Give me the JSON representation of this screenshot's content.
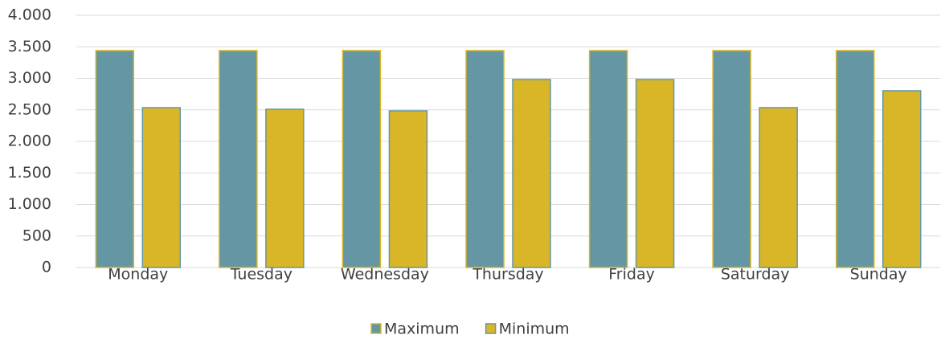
{
  "chart_data": {
    "type": "bar",
    "categories": [
      "Monday",
      "Tuesday",
      "Wednesday",
      "Thursday",
      "Friday",
      "Saturday",
      "Sunday"
    ],
    "series": [
      {
        "name": "Maximum",
        "color": "#6497a3",
        "values": [
          3440,
          3440,
          3440,
          3440,
          3440,
          3440,
          3440
        ]
      },
      {
        "name": "Minimum",
        "color": "#d9b528",
        "values": [
          2535,
          2510,
          2484,
          2981,
          2981,
          2535,
          2803
        ]
      }
    ],
    "ylim": [
      0,
      4000
    ],
    "yticks": [
      0,
      500,
      {
        "value": 1000,
        "label": "1.000"
      },
      {
        "value": 1500,
        "label": "1.500"
      },
      {
        "value": 2000,
        "label": "2.000"
      },
      {
        "value": 2500,
        "label": "2.500"
      },
      {
        "value": 3000,
        "label": "3.000"
      },
      {
        "value": 3500,
        "label": "3.500"
      },
      {
        "value": 4000,
        "label": "4.000"
      }
    ],
    "grid": true,
    "legend": "bottom"
  }
}
